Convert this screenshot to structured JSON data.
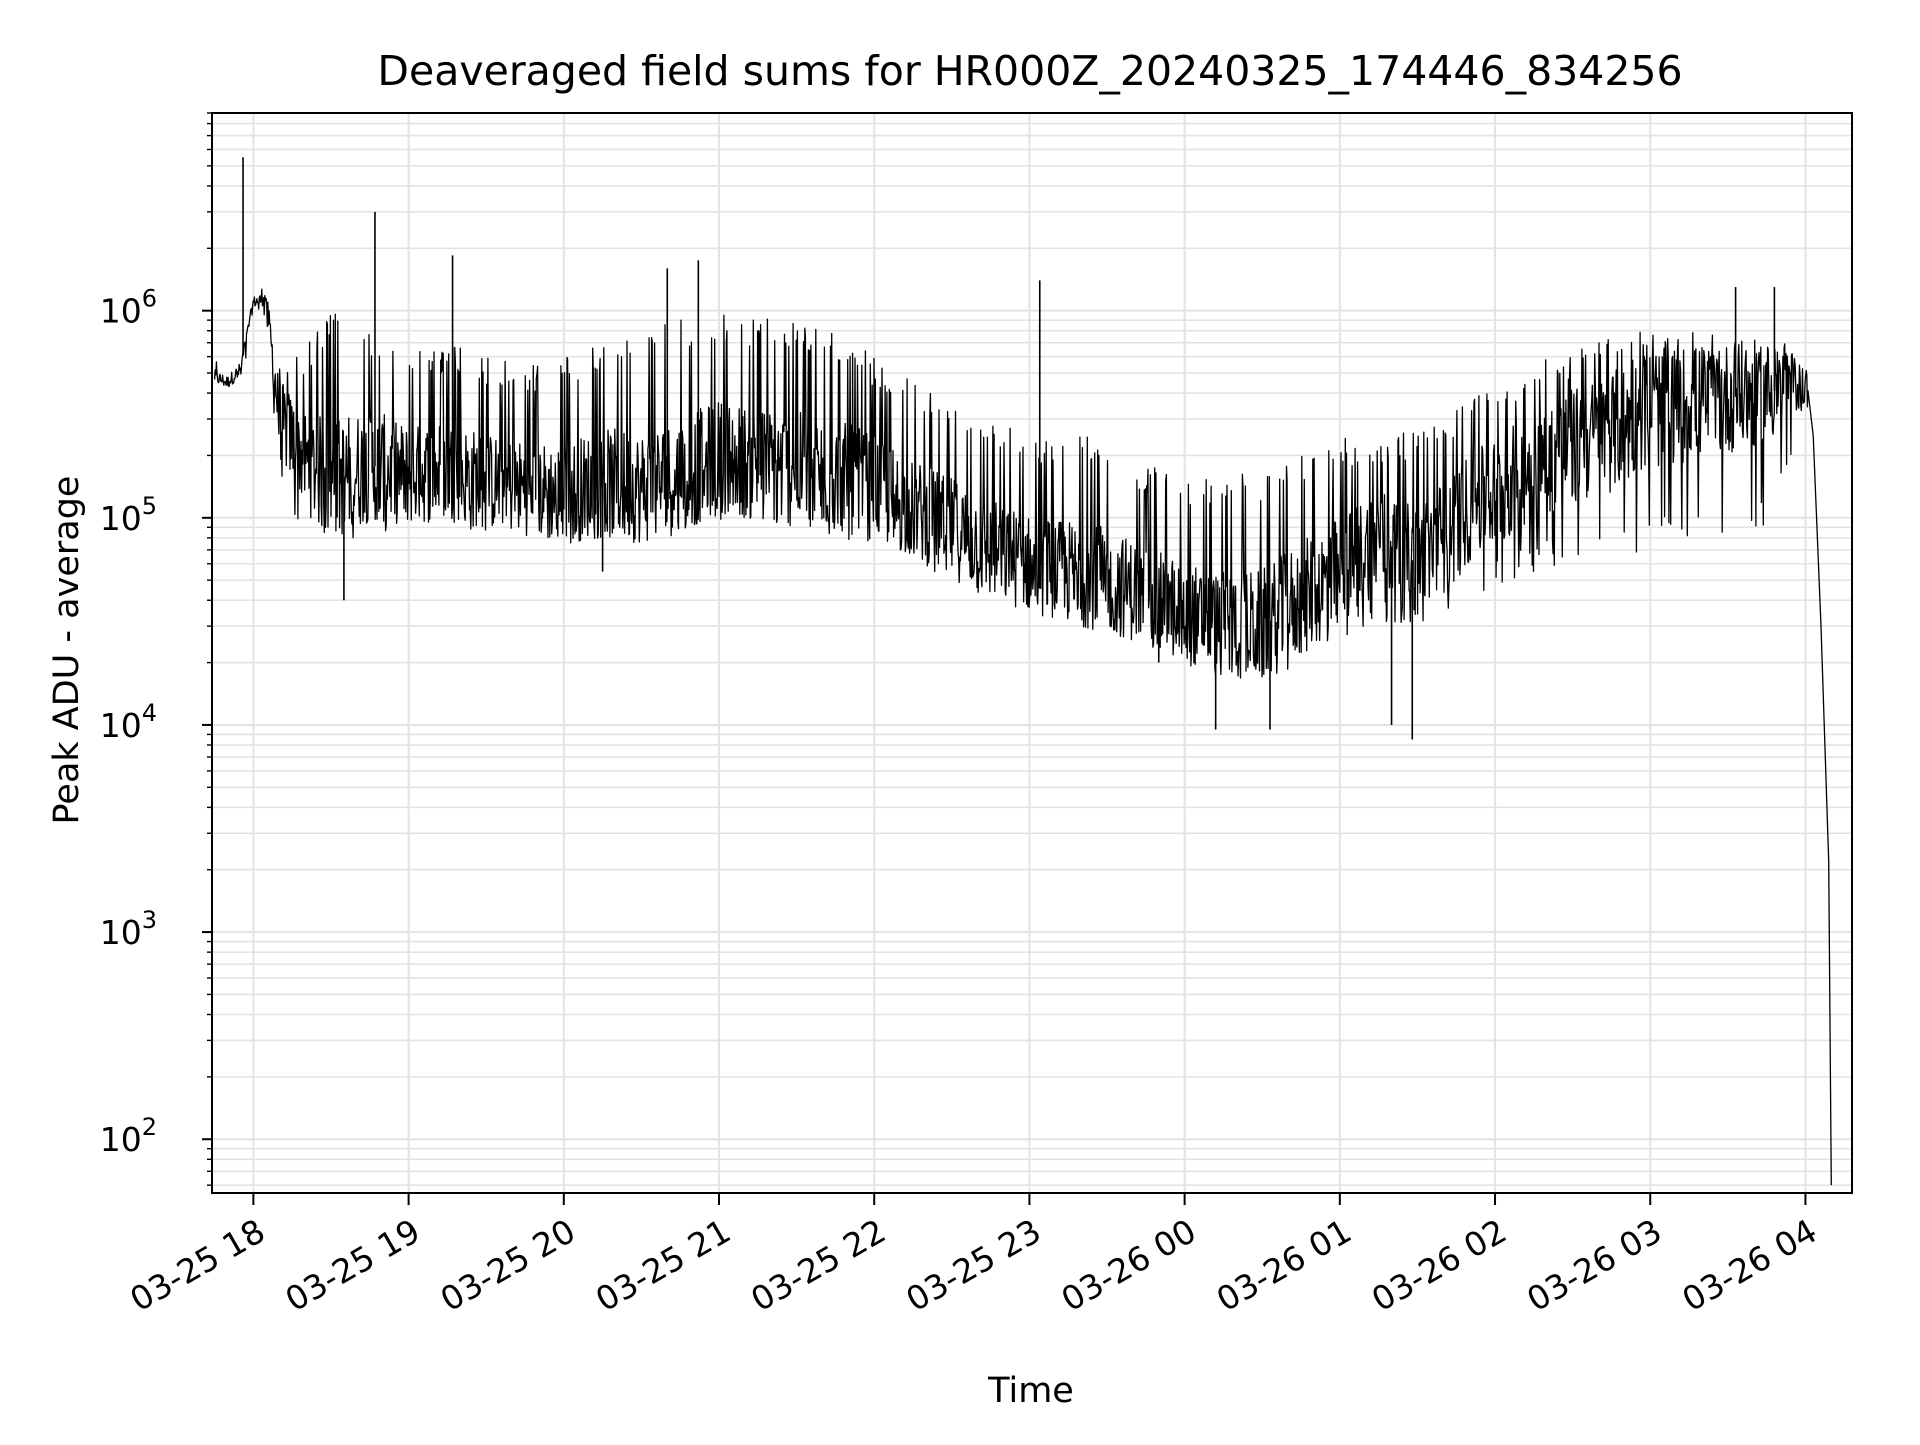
{
  "chart_data": {
    "type": "line",
    "title": "Deaveraged field sums for HR000Z_20240325_174446_834256",
    "xlabel": "Time",
    "ylabel": "Peak ADU - average",
    "yscale": "log",
    "xlim": [
      "2024-03-25 17:44",
      "2024-03-26 04:18"
    ],
    "ylim": [
      55,
      9000000
    ],
    "grid": true,
    "x_ticks": [
      "03-25 18",
      "03-25 19",
      "03-25 20",
      "03-25 21",
      "03-25 22",
      "03-25 23",
      "03-26 00",
      "03-26 01",
      "03-26 02",
      "03-26 03",
      "03-26 04"
    ],
    "y_ticks": [
      {
        "base": "10",
        "exp": "2",
        "value": 100
      },
      {
        "base": "10",
        "exp": "3",
        "value": 1000
      },
      {
        "base": "10",
        "exp": "4",
        "value": 10000
      },
      {
        "base": "10",
        "exp": "5",
        "value": 100000
      },
      {
        "base": "10",
        "exp": "6",
        "value": 1000000
      }
    ],
    "series": [
      {
        "line_color": "#000000",
        "x": [
          "2024-03-25 17:45",
          "2024-03-25 17:50",
          "2024-03-25 17:55",
          "2024-03-25 18:00",
          "2024-03-25 18:05",
          "2024-03-25 18:10",
          "2024-03-25 18:20",
          "2024-03-25 18:30",
          "2024-03-25 18:45",
          "2024-03-25 19:00",
          "2024-03-25 19:15",
          "2024-03-25 19:30",
          "2024-03-25 19:45",
          "2024-03-25 20:00",
          "2024-03-25 20:15",
          "2024-03-25 20:30",
          "2024-03-25 20:45",
          "2024-03-25 21:00",
          "2024-03-25 21:15",
          "2024-03-25 21:30",
          "2024-03-25 21:45",
          "2024-03-25 22:00",
          "2024-03-25 22:15",
          "2024-03-25 22:30",
          "2024-03-25 22:45",
          "2024-03-25 23:00",
          "2024-03-25 23:15",
          "2024-03-25 23:30",
          "2024-03-25 23:45",
          "2024-03-26 00:00",
          "2024-03-26 00:15",
          "2024-03-26 00:30",
          "2024-03-26 00:45",
          "2024-03-26 01:00",
          "2024-03-26 01:15",
          "2024-03-26 01:30",
          "2024-03-26 01:45",
          "2024-03-26 02:00",
          "2024-03-26 02:15",
          "2024-03-26 02:30",
          "2024-03-26 02:45",
          "2024-03-26 03:00",
          "2024-03-26 03:15",
          "2024-03-26 03:30",
          "2024-03-26 03:45",
          "2024-03-26 04:00",
          "2024-03-26 04:03",
          "2024-03-26 04:06",
          "2024-03-26 04:09",
          "2024-03-26 04:10"
        ],
        "y": [
          480000,
          450000,
          520000,
          1100000,
          1150000,
          300000,
          190000,
          150000,
          180000,
          160000,
          170000,
          150000,
          140000,
          130000,
          150000,
          140000,
          160000,
          200000,
          180000,
          170000,
          160000,
          140000,
          110000,
          90000,
          70000,
          60000,
          55000,
          50000,
          42000,
          35000,
          30000,
          30000,
          40000,
          55000,
          80000,
          60000,
          100000,
          130000,
          180000,
          220000,
          260000,
          330000,
          360000,
          380000,
          400000,
          450000,
          250000,
          30000,
          2200,
          60
        ],
        "band_low": [
          420000,
          400000,
          450000,
          1000000,
          900000,
          120000,
          90000,
          80000,
          80000,
          85000,
          90000,
          85000,
          80000,
          75000,
          80000,
          80000,
          85000,
          95000,
          90000,
          85000,
          80000,
          70000,
          60000,
          48000,
          40000,
          35000,
          32000,
          28000,
          24000,
          20000,
          18000,
          17000,
          19000,
          26000,
          30000,
          28000,
          38000,
          45000,
          55000,
          60000,
          65000,
          70000,
          75000,
          80000,
          90000,
          300000,
          120000,
          30000,
          2200,
          60
        ],
        "band_high": [
          560000,
          520000,
          600000,
          1250000,
          1200000,
          600000,
          700000,
          1000000,
          800000,
          650000,
          700000,
          600000,
          550000,
          600000,
          700000,
          800000,
          900000,
          950000,
          950000,
          900000,
          800000,
          600000,
          450000,
          380000,
          320000,
          250000,
          260000,
          240000,
          180000,
          160000,
          160000,
          170000,
          200000,
          250000,
          250000,
          260000,
          350000,
          450000,
          550000,
          650000,
          750000,
          800000,
          800000,
          750000,
          800000,
          650000,
          400000,
          30000,
          2200,
          60
        ],
        "spikes": [
          {
            "x": "2024-03-25 17:56",
            "y": 5500000
          },
          {
            "x": "2024-03-25 18:47",
            "y": 3000000
          },
          {
            "x": "2024-03-25 19:17",
            "y": 1850000
          },
          {
            "x": "2024-03-25 20:40",
            "y": 1600000
          },
          {
            "x": "2024-03-25 20:52",
            "y": 1750000
          },
          {
            "x": "2024-03-25 23:04",
            "y": 1400000
          },
          {
            "x": "2024-03-26 03:33",
            "y": 1300000
          },
          {
            "x": "2024-03-26 03:48",
            "y": 1300000
          },
          {
            "x": "2024-03-25 18:35",
            "y": 40000
          },
          {
            "x": "2024-03-25 20:15",
            "y": 55000
          },
          {
            "x": "2024-03-25 23:50",
            "y": 20000
          },
          {
            "x": "2024-03-26 00:12",
            "y": 9500
          },
          {
            "x": "2024-03-26 00:33",
            "y": 9500
          },
          {
            "x": "2024-03-26 01:20",
            "y": 10000
          },
          {
            "x": "2024-03-26 01:28",
            "y": 8500
          }
        ]
      }
    ]
  }
}
